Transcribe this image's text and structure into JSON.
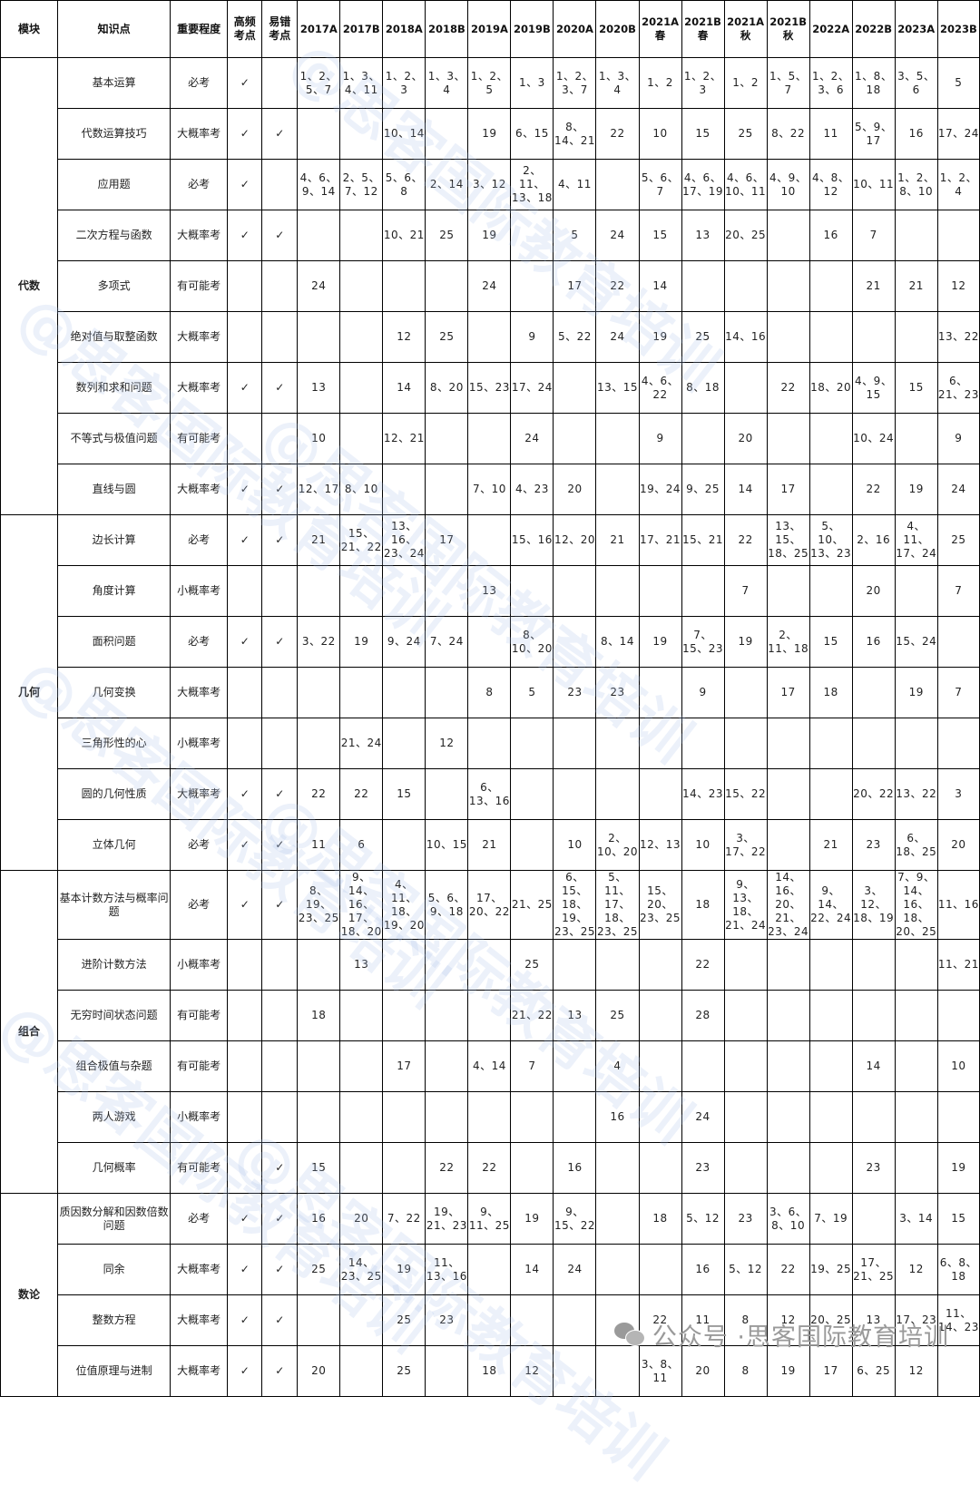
{
  "headers": [
    "模块",
    "知识点",
    "重要程度",
    "高频考点",
    "易错考点",
    "2017A",
    "2017B",
    "2018A",
    "2018B",
    "2019A",
    "2019B",
    "2020A",
    "2020B",
    "2021A春",
    "2021B春",
    "2021A秋",
    "2021B秋",
    "2022A",
    "2022B",
    "2023A",
    "2023B"
  ],
  "header_lines": {
    "3": [
      "高频",
      "考点"
    ],
    "4": [
      "易错",
      "考点"
    ],
    "13": [
      "2021A",
      "春"
    ],
    "14": [
      "2021B",
      "春"
    ],
    "15": [
      "2021A",
      "秋"
    ],
    "16": [
      "2021B",
      "秋"
    ]
  },
  "check_symbol": "✓",
  "modules": [
    {
      "name": "代数",
      "rows": [
        {
          "topic": "基本运算",
          "importance": "必考",
          "freq": true,
          "err": false,
          "cells": [
            "1、2、5、7",
            "1、3、4、11",
            "1、2、3",
            "1、3、4",
            "1、2、5",
            "1、3",
            "1、2、3、7",
            "1、3、4",
            "1、2",
            "1、2、3",
            "1、2",
            "1、5、7",
            "1、2、3、6",
            "1、8、18",
            "3、5、6",
            "5"
          ]
        },
        {
          "topic": "代数运算技巧",
          "importance": "大概率考",
          "freq": true,
          "err": true,
          "cells": [
            "",
            "",
            "10、14",
            "",
            "19",
            "6、15",
            "8、14、21",
            "22",
            "10",
            "15",
            "25",
            "8、22",
            "11",
            "5、9、17",
            "16",
            "17、24"
          ]
        },
        {
          "topic": "应用题",
          "importance": "必考",
          "freq": true,
          "err": false,
          "cells": [
            "4、6、9、14",
            "2、5、7、12",
            "5、6、8",
            "2、14",
            "3、12",
            "2、11、13、18",
            "4、11",
            "",
            "5、6、7",
            "4、6、17、19",
            "4、6、10、11",
            "4、9、10",
            "4、8、12",
            "10、11",
            "1、2、8、10",
            "1、2、4"
          ]
        },
        {
          "topic": "二次方程与函数",
          "importance": "大概率考",
          "freq": true,
          "err": true,
          "cells": [
            "",
            "",
            "10、21",
            "25",
            "19",
            "",
            "5",
            "24",
            "15",
            "13",
            "20、25",
            "",
            "16",
            "7",
            "",
            ""
          ]
        },
        {
          "topic": "多项式",
          "importance": "有可能考",
          "freq": false,
          "err": false,
          "cells": [
            "24",
            "",
            "",
            "",
            "24",
            "",
            "17",
            "22",
            "14",
            "",
            "",
            "",
            "",
            "21",
            "21",
            "12"
          ]
        },
        {
          "topic": "绝对值与取整函数",
          "importance": "大概率考",
          "freq": false,
          "err": false,
          "cells": [
            "",
            "",
            "12",
            "25",
            "",
            "9",
            "5、22",
            "24",
            "19",
            "25",
            "14、16",
            "",
            "",
            "",
            "",
            "13、22"
          ]
        },
        {
          "topic": "数列和求和问题",
          "importance": "大概率考",
          "freq": true,
          "err": true,
          "cells": [
            "13",
            "",
            "14",
            "8、20",
            "15、23",
            "17、24",
            "",
            "13、15",
            "4、6、22",
            "8、18",
            "",
            "22",
            "18、20",
            "4、9、15",
            "15",
            "6、21、23"
          ]
        },
        {
          "topic": "不等式与极值问题",
          "importance": "有可能考",
          "freq": false,
          "err": false,
          "cells": [
            "10",
            "",
            "12、21",
            "",
            "",
            "24",
            "",
            "",
            "9",
            "",
            "20",
            "",
            "",
            "10、24",
            "",
            "9"
          ]
        },
        {
          "topic": "直线与圆",
          "importance": "大概率考",
          "freq": true,
          "err": true,
          "cells": [
            "12、17",
            "8、10",
            "",
            "",
            "7、10",
            "4、23",
            "20",
            "",
            "19、24",
            "9、25",
            "14",
            "17",
            "",
            "22",
            "19",
            "24"
          ]
        }
      ]
    },
    {
      "name": "几何",
      "rows": [
        {
          "topic": "边长计算",
          "importance": "必考",
          "freq": true,
          "err": true,
          "cells": [
            "21",
            "15、21、22",
            "13、16、23、24",
            "17",
            "",
            "15、16",
            "12、20",
            "21",
            "17、21",
            "15、21",
            "22",
            "13、15、18、25",
            "5、10、13、23",
            "2、16",
            "4、11、17、24",
            "25"
          ]
        },
        {
          "topic": "角度计算",
          "importance": "小概率考",
          "freq": false,
          "err": false,
          "cells": [
            "",
            "",
            "",
            "",
            "13",
            "",
            "",
            "",
            "",
            "",
            "7",
            "",
            "",
            "20",
            "",
            "7"
          ]
        },
        {
          "topic": "面积问题",
          "importance": "必考",
          "freq": true,
          "err": true,
          "cells": [
            "3、22",
            "19",
            "9、24",
            "7、24",
            "",
            "8、10、20",
            "",
            "8、14",
            "19",
            "7、15、23",
            "19",
            "2、11、18",
            "15",
            "16",
            "15、24",
            ""
          ]
        },
        {
          "topic": "几何变换",
          "importance": "大概率考",
          "freq": false,
          "err": false,
          "cells": [
            "",
            "",
            "",
            "",
            "8",
            "5",
            "23",
            "23",
            "",
            "9",
            "",
            "17",
            "18",
            "",
            "19",
            "7"
          ]
        },
        {
          "topic": "三角形性的心",
          "importance": "小概率考",
          "freq": false,
          "err": false,
          "cells": [
            "",
            "21、24",
            "",
            "12",
            "",
            "",
            "",
            "",
            "",
            "",
            "",
            "",
            "",
            "",
            "",
            ""
          ]
        },
        {
          "topic": "圆的几何性质",
          "importance": "大概率考",
          "freq": true,
          "err": true,
          "cells": [
            "22",
            "22",
            "15",
            "",
            "6、13、16",
            "",
            "",
            "",
            "",
            "14、23",
            "15、22",
            "",
            "",
            "20、22",
            "13、22",
            "3"
          ]
        },
        {
          "topic": "立体几何",
          "importance": "必考",
          "freq": true,
          "err": true,
          "cells": [
            "11",
            "6",
            "",
            "10、15",
            "21",
            "",
            "10",
            "2、10、20",
            "12、13",
            "10",
            "3、17、22",
            "",
            "21",
            "23",
            "6、18、25",
            "20"
          ]
        }
      ]
    },
    {
      "name": "组合",
      "rows": [
        {
          "topic": "基本计数方法与概率问题",
          "importance": "必考",
          "freq": true,
          "err": true,
          "cells": [
            "8、19、23、25",
            "9、14、16、17、18、20",
            "4、11、18、19、20",
            "5、6、9、18",
            "17、20、22",
            "21、25",
            "6、15、18、19、23、25",
            "5、11、17、18、23、25",
            "15、20、23、25",
            "18",
            "9、13、18、21、24",
            "14、16、20、21、23、24",
            "9、14、22、24",
            "3、12、18、19",
            "7、9、14、16、18、20、25",
            "11、16"
          ]
        },
        {
          "topic": "进阶计数方法",
          "importance": "小概率考",
          "freq": false,
          "err": false,
          "cells": [
            "",
            "13",
            "",
            "",
            "",
            "25",
            "",
            "",
            "",
            "22",
            "",
            "",
            "",
            "",
            "",
            "11、21"
          ]
        },
        {
          "topic": "无穷时间状态问题",
          "importance": "有可能考",
          "freq": false,
          "err": false,
          "cells": [
            "18",
            "",
            "",
            "",
            "",
            "21、22",
            "13",
            "25",
            "",
            "28",
            "",
            "",
            "",
            "",
            "",
            ""
          ]
        },
        {
          "topic": "组合极值与杂题",
          "importance": "有可能考",
          "freq": false,
          "err": false,
          "cells": [
            "",
            "",
            "17",
            "",
            "4、14",
            "7",
            "",
            "4",
            "",
            "",
            "",
            "",
            "",
            "14",
            "",
            "10"
          ]
        },
        {
          "topic": "两人游戏",
          "importance": "小概率考",
          "freq": false,
          "err": false,
          "cells": [
            "",
            "",
            "",
            "",
            "",
            "",
            "",
            "16",
            "",
            "24",
            "",
            "",
            "",
            "",
            "",
            ""
          ]
        },
        {
          "topic": "几何概率",
          "importance": "有可能考",
          "freq": false,
          "err": true,
          "cells": [
            "15",
            "",
            "",
            "22",
            "22",
            "",
            "16",
            "",
            "",
            "23",
            "",
            "",
            "",
            "23",
            "",
            "19"
          ]
        }
      ]
    },
    {
      "name": "数论",
      "rows": [
        {
          "topic": "质因数分解和因数倍数问题",
          "importance": "必考",
          "freq": true,
          "err": true,
          "cells": [
            "16",
            "20",
            "7、22",
            "19、21、23",
            "9、11、25",
            "19",
            "9、15、22",
            "",
            "18",
            "5、12",
            "23",
            "3、6、8、10",
            "7、19",
            "",
            "3、14",
            "15"
          ]
        },
        {
          "topic": "同余",
          "importance": "大概率考",
          "freq": true,
          "err": true,
          "cells": [
            "25",
            "14、23、25",
            "19",
            "11、13、16",
            "",
            "14",
            "24",
            "",
            "",
            "16",
            "5、12",
            "22",
            "19、25",
            "17、21、25",
            "12",
            "6、8、18"
          ]
        },
        {
          "topic": "整数方程",
          "importance": "大概率考",
          "freq": true,
          "err": true,
          "cells": [
            "",
            "",
            "25",
            "23",
            "",
            "",
            "",
            "",
            "22",
            "11",
            "8",
            "12",
            "20、25",
            "13",
            "17、23",
            "11、14、23"
          ]
        },
        {
          "topic": "位值原理与进制",
          "importance": "大概率考",
          "freq": true,
          "err": true,
          "cells": [
            "20",
            "",
            "25",
            "",
            "18",
            "12",
            "",
            "",
            "3、8、11",
            "20",
            "8",
            "19",
            "17",
            "6、25",
            "12",
            ""
          ]
        }
      ]
    }
  ],
  "watermark": "@思客国际教育培训",
  "footer": {
    "prefix": "公众号 · ",
    "name": "思客国际教育培训"
  }
}
